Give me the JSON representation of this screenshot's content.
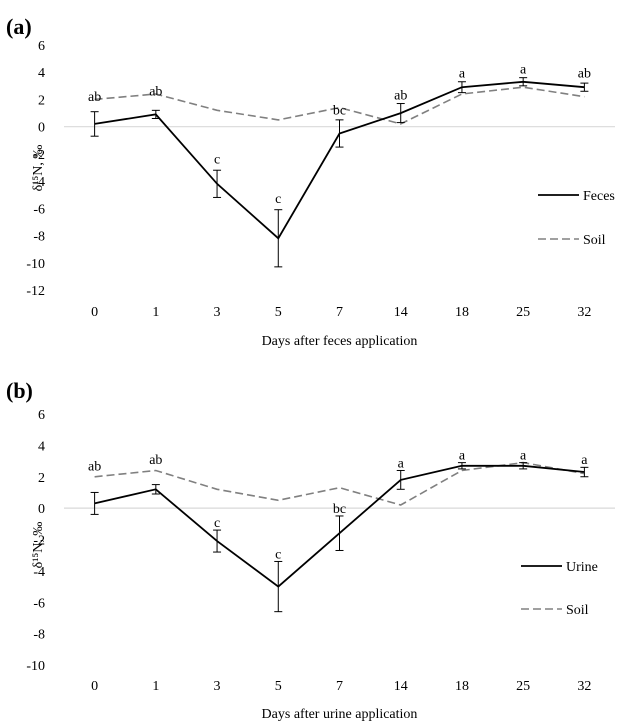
{
  "chart_data": [
    {
      "type": "line",
      "panel_label": "(a)",
      "ylabel": "δ¹⁵N, ‰",
      "xlabel": "Days after feces application",
      "ylim": [
        -12,
        6
      ],
      "yticks": [
        -12,
        -10,
        -8,
        -6,
        -4,
        -2,
        0,
        2,
        4,
        6
      ],
      "categories": [
        "0",
        "1",
        "3",
        "5",
        "7",
        "14",
        "18",
        "25",
        "32"
      ],
      "series": [
        {
          "name": "Feces",
          "style": "solid",
          "color": "#000000",
          "values": [
            0.2,
            0.9,
            -4.2,
            -8.2,
            -0.5,
            1.0,
            2.9,
            3.3,
            2.9
          ],
          "errors": [
            0.9,
            0.3,
            1.0,
            2.1,
            1.0,
            0.7,
            0.4,
            0.3,
            0.3
          ]
        },
        {
          "name": "Soil",
          "style": "dashed",
          "color": "#808080",
          "values": [
            2.0,
            2.4,
            1.2,
            0.5,
            1.4,
            0.2,
            2.4,
            2.9,
            2.2
          ]
        }
      ],
      "annotations": [
        "ab",
        "ab",
        "c",
        "c",
        "bc",
        "ab",
        "a",
        "a",
        "ab"
      ],
      "annotation_y": [
        1.9,
        2.3,
        -2.7,
        -5.6,
        0.9,
        2.0,
        3.6,
        3.9,
        3.6
      ]
    },
    {
      "type": "line",
      "panel_label": "(b)",
      "ylabel": "δ¹⁵N, ‰",
      "xlabel": "Days after urine application",
      "ylim": [
        -10,
        6
      ],
      "yticks": [
        -10,
        -8,
        -6,
        -4,
        -2,
        0,
        2,
        4,
        6
      ],
      "categories": [
        "0",
        "1",
        "3",
        "5",
        "7",
        "14",
        "18",
        "25",
        "32"
      ],
      "series": [
        {
          "name": "Urine",
          "style": "solid",
          "color": "#000000",
          "values": [
            0.3,
            1.2,
            -2.1,
            -5.0,
            -1.6,
            1.8,
            2.7,
            2.7,
            2.3
          ],
          "errors": [
            0.7,
            0.3,
            0.7,
            1.6,
            1.1,
            0.6,
            0.2,
            0.2,
            0.3
          ]
        },
        {
          "name": "Soil",
          "style": "dashed",
          "color": "#808080",
          "values": [
            2.0,
            2.4,
            1.2,
            0.5,
            1.3,
            0.2,
            2.4,
            2.9,
            2.2
          ]
        }
      ],
      "annotations": [
        "ab",
        "ab",
        "c",
        "c",
        "bc",
        "a",
        "a",
        "a",
        "a"
      ],
      "annotation_y": [
        2.4,
        2.8,
        -1.2,
        -3.2,
        -0.3,
        2.6,
        3.1,
        3.1,
        2.8
      ]
    }
  ]
}
